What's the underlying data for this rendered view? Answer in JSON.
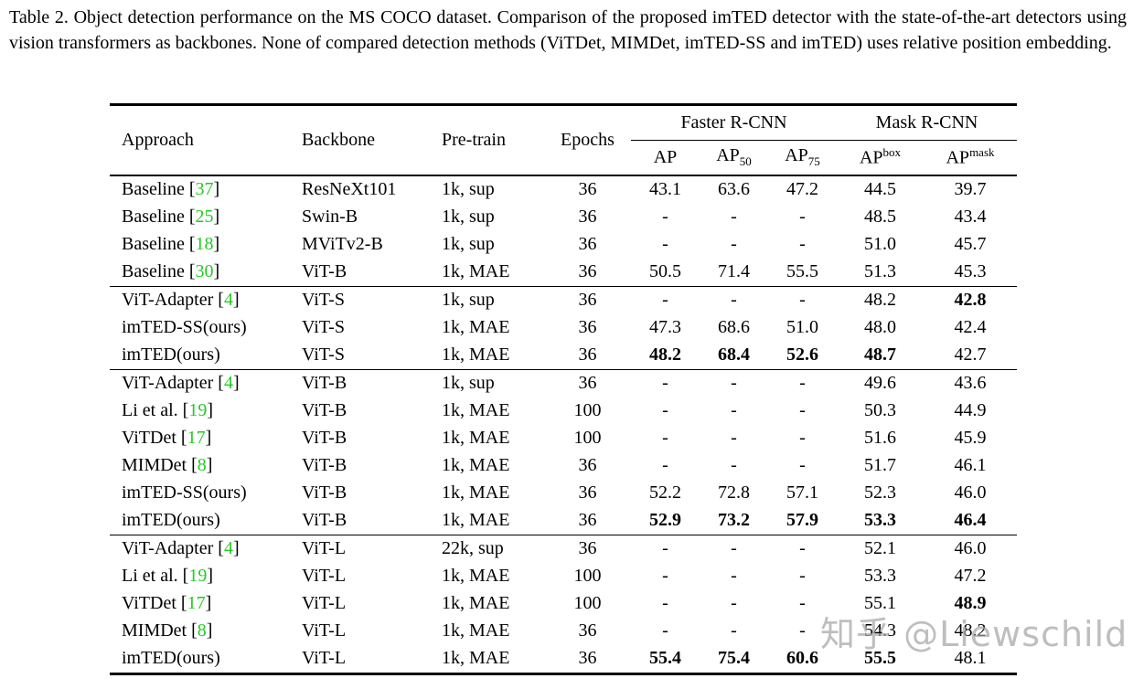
{
  "caption": "Table 2. Object detection performance on the MS COCO dataset. Comparison of the proposed imTED detector with the state-of-the-art detectors using vision transformers as backbones. None of compared detection methods (ViTDet, MIMDet, imTED-SS and imTED) uses relative position embedding.",
  "colors": {
    "citation_green": "#22cc22",
    "rule_black": "#000000",
    "watermark_gray": "#a6a6a6"
  },
  "header": {
    "approach": "Approach",
    "backbone": "Backbone",
    "pretrain": "Pre-train",
    "epochs": "Epochs",
    "group1": "Faster R-CNN",
    "group2": "Mask R-CNN",
    "sub": {
      "ap": "AP",
      "ap50": {
        "base": "AP",
        "sub": "50"
      },
      "ap75": {
        "base": "AP",
        "sub": "75"
      },
      "apbox": {
        "base": "AP",
        "sup": "box"
      },
      "apmask": {
        "base": "AP",
        "sup": "mask"
      }
    }
  },
  "rows": [
    {
      "approach": "Baseline",
      "cite": "37",
      "backbone": "ResNeXt101",
      "pretrain": "1k, sup",
      "epochs": "36",
      "vals": [
        "43.1",
        "63.6",
        "47.2",
        "44.5",
        "39.7"
      ],
      "bold": [],
      "section_end": false
    },
    {
      "approach": "Baseline",
      "cite": "25",
      "backbone": "Swin-B",
      "pretrain": "1k, sup",
      "epochs": "36",
      "vals": [
        "-",
        "-",
        "-",
        "48.5",
        "43.4"
      ],
      "bold": [],
      "section_end": false
    },
    {
      "approach": "Baseline",
      "cite": "18",
      "backbone": "MViTv2-B",
      "pretrain": "1k, sup",
      "epochs": "36",
      "vals": [
        "-",
        "-",
        "-",
        "51.0",
        "45.7"
      ],
      "bold": [],
      "section_end": false
    },
    {
      "approach": "Baseline",
      "cite": "30",
      "backbone": "ViT-B",
      "pretrain": "1k, MAE",
      "epochs": "36",
      "vals": [
        "50.5",
        "71.4",
        "55.5",
        "51.3",
        "45.3"
      ],
      "bold": [],
      "section_end": true
    },
    {
      "approach": "ViT-Adapter",
      "cite": "4",
      "backbone": "ViT-S",
      "pretrain": "1k, sup",
      "epochs": "36",
      "vals": [
        "-",
        "-",
        "-",
        "48.2",
        "42.8"
      ],
      "bold": [
        4
      ],
      "section_end": false
    },
    {
      "approach": "imTED-SS(ours)",
      "cite": null,
      "backbone": "ViT-S",
      "pretrain": "1k, MAE",
      "epochs": "36",
      "vals": [
        "47.3",
        "68.6",
        "51.0",
        "48.0",
        "42.4"
      ],
      "bold": [],
      "section_end": false
    },
    {
      "approach": "imTED(ours)",
      "cite": null,
      "backbone": "ViT-S",
      "pretrain": "1k, MAE",
      "epochs": "36",
      "vals": [
        "48.2",
        "68.4",
        "52.6",
        "48.7",
        "42.7"
      ],
      "bold": [
        0,
        1,
        2,
        3
      ],
      "section_end": true
    },
    {
      "approach": "ViT-Adapter",
      "cite": "4",
      "backbone": "ViT-B",
      "pretrain": "1k, sup",
      "epochs": "36",
      "vals": [
        "-",
        "-",
        "-",
        "49.6",
        "43.6"
      ],
      "bold": [],
      "section_end": false
    },
    {
      "approach": "Li et al.",
      "cite": "19",
      "backbone": "ViT-B",
      "pretrain": "1k, MAE",
      "epochs": "100",
      "vals": [
        "-",
        "-",
        "-",
        "50.3",
        "44.9"
      ],
      "bold": [],
      "section_end": false
    },
    {
      "approach": "ViTDet",
      "cite": "17",
      "backbone": "ViT-B",
      "pretrain": "1k, MAE",
      "epochs": "100",
      "vals": [
        "-",
        "-",
        "-",
        "51.6",
        "45.9"
      ],
      "bold": [],
      "section_end": false
    },
    {
      "approach": "MIMDet",
      "cite": "8",
      "backbone": "ViT-B",
      "pretrain": "1k, MAE",
      "epochs": "36",
      "vals": [
        "-",
        "-",
        "-",
        "51.7",
        "46.1"
      ],
      "bold": [],
      "section_end": false
    },
    {
      "approach": "imTED-SS(ours)",
      "cite": null,
      "backbone": "ViT-B",
      "pretrain": "1k, MAE",
      "epochs": "36",
      "vals": [
        "52.2",
        "72.8",
        "57.1",
        "52.3",
        "46.0"
      ],
      "bold": [],
      "section_end": false
    },
    {
      "approach": "imTED(ours)",
      "cite": null,
      "backbone": "ViT-B",
      "pretrain": "1k, MAE",
      "epochs": "36",
      "vals": [
        "52.9",
        "73.2",
        "57.9",
        "53.3",
        "46.4"
      ],
      "bold": [
        0,
        1,
        2,
        3,
        4
      ],
      "section_end": true
    },
    {
      "approach": "ViT-Adapter",
      "cite": "4",
      "backbone": "ViT-L",
      "pretrain": "22k, sup",
      "epochs": "36",
      "vals": [
        "-",
        "-",
        "-",
        "52.1",
        "46.0"
      ],
      "bold": [],
      "section_end": false
    },
    {
      "approach": "Li et al.",
      "cite": "19",
      "backbone": "ViT-L",
      "pretrain": "1k, MAE",
      "epochs": "100",
      "vals": [
        "-",
        "-",
        "-",
        "53.3",
        "47.2"
      ],
      "bold": [],
      "section_end": false
    },
    {
      "approach": "ViTDet",
      "cite": "17",
      "backbone": "ViT-L",
      "pretrain": "1k, MAE",
      "epochs": "100",
      "vals": [
        "-",
        "-",
        "-",
        "55.1",
        "48.9"
      ],
      "bold": [
        4
      ],
      "section_end": false
    },
    {
      "approach": "MIMDet",
      "cite": "8",
      "backbone": "ViT-L",
      "pretrain": "1k, MAE",
      "epochs": "36",
      "vals": [
        "-",
        "-",
        "-",
        "54.3",
        "48.2"
      ],
      "bold": [],
      "section_end": false
    },
    {
      "approach": "imTED(ours)",
      "cite": null,
      "backbone": "ViT-L",
      "pretrain": "1k, MAE",
      "epochs": "36",
      "vals": [
        "55.4",
        "75.4",
        "60.6",
        "55.5",
        "48.1"
      ],
      "bold": [
        0,
        1,
        2,
        3
      ],
      "section_end": false
    }
  ],
  "watermark": "知乎 @Liewschild"
}
